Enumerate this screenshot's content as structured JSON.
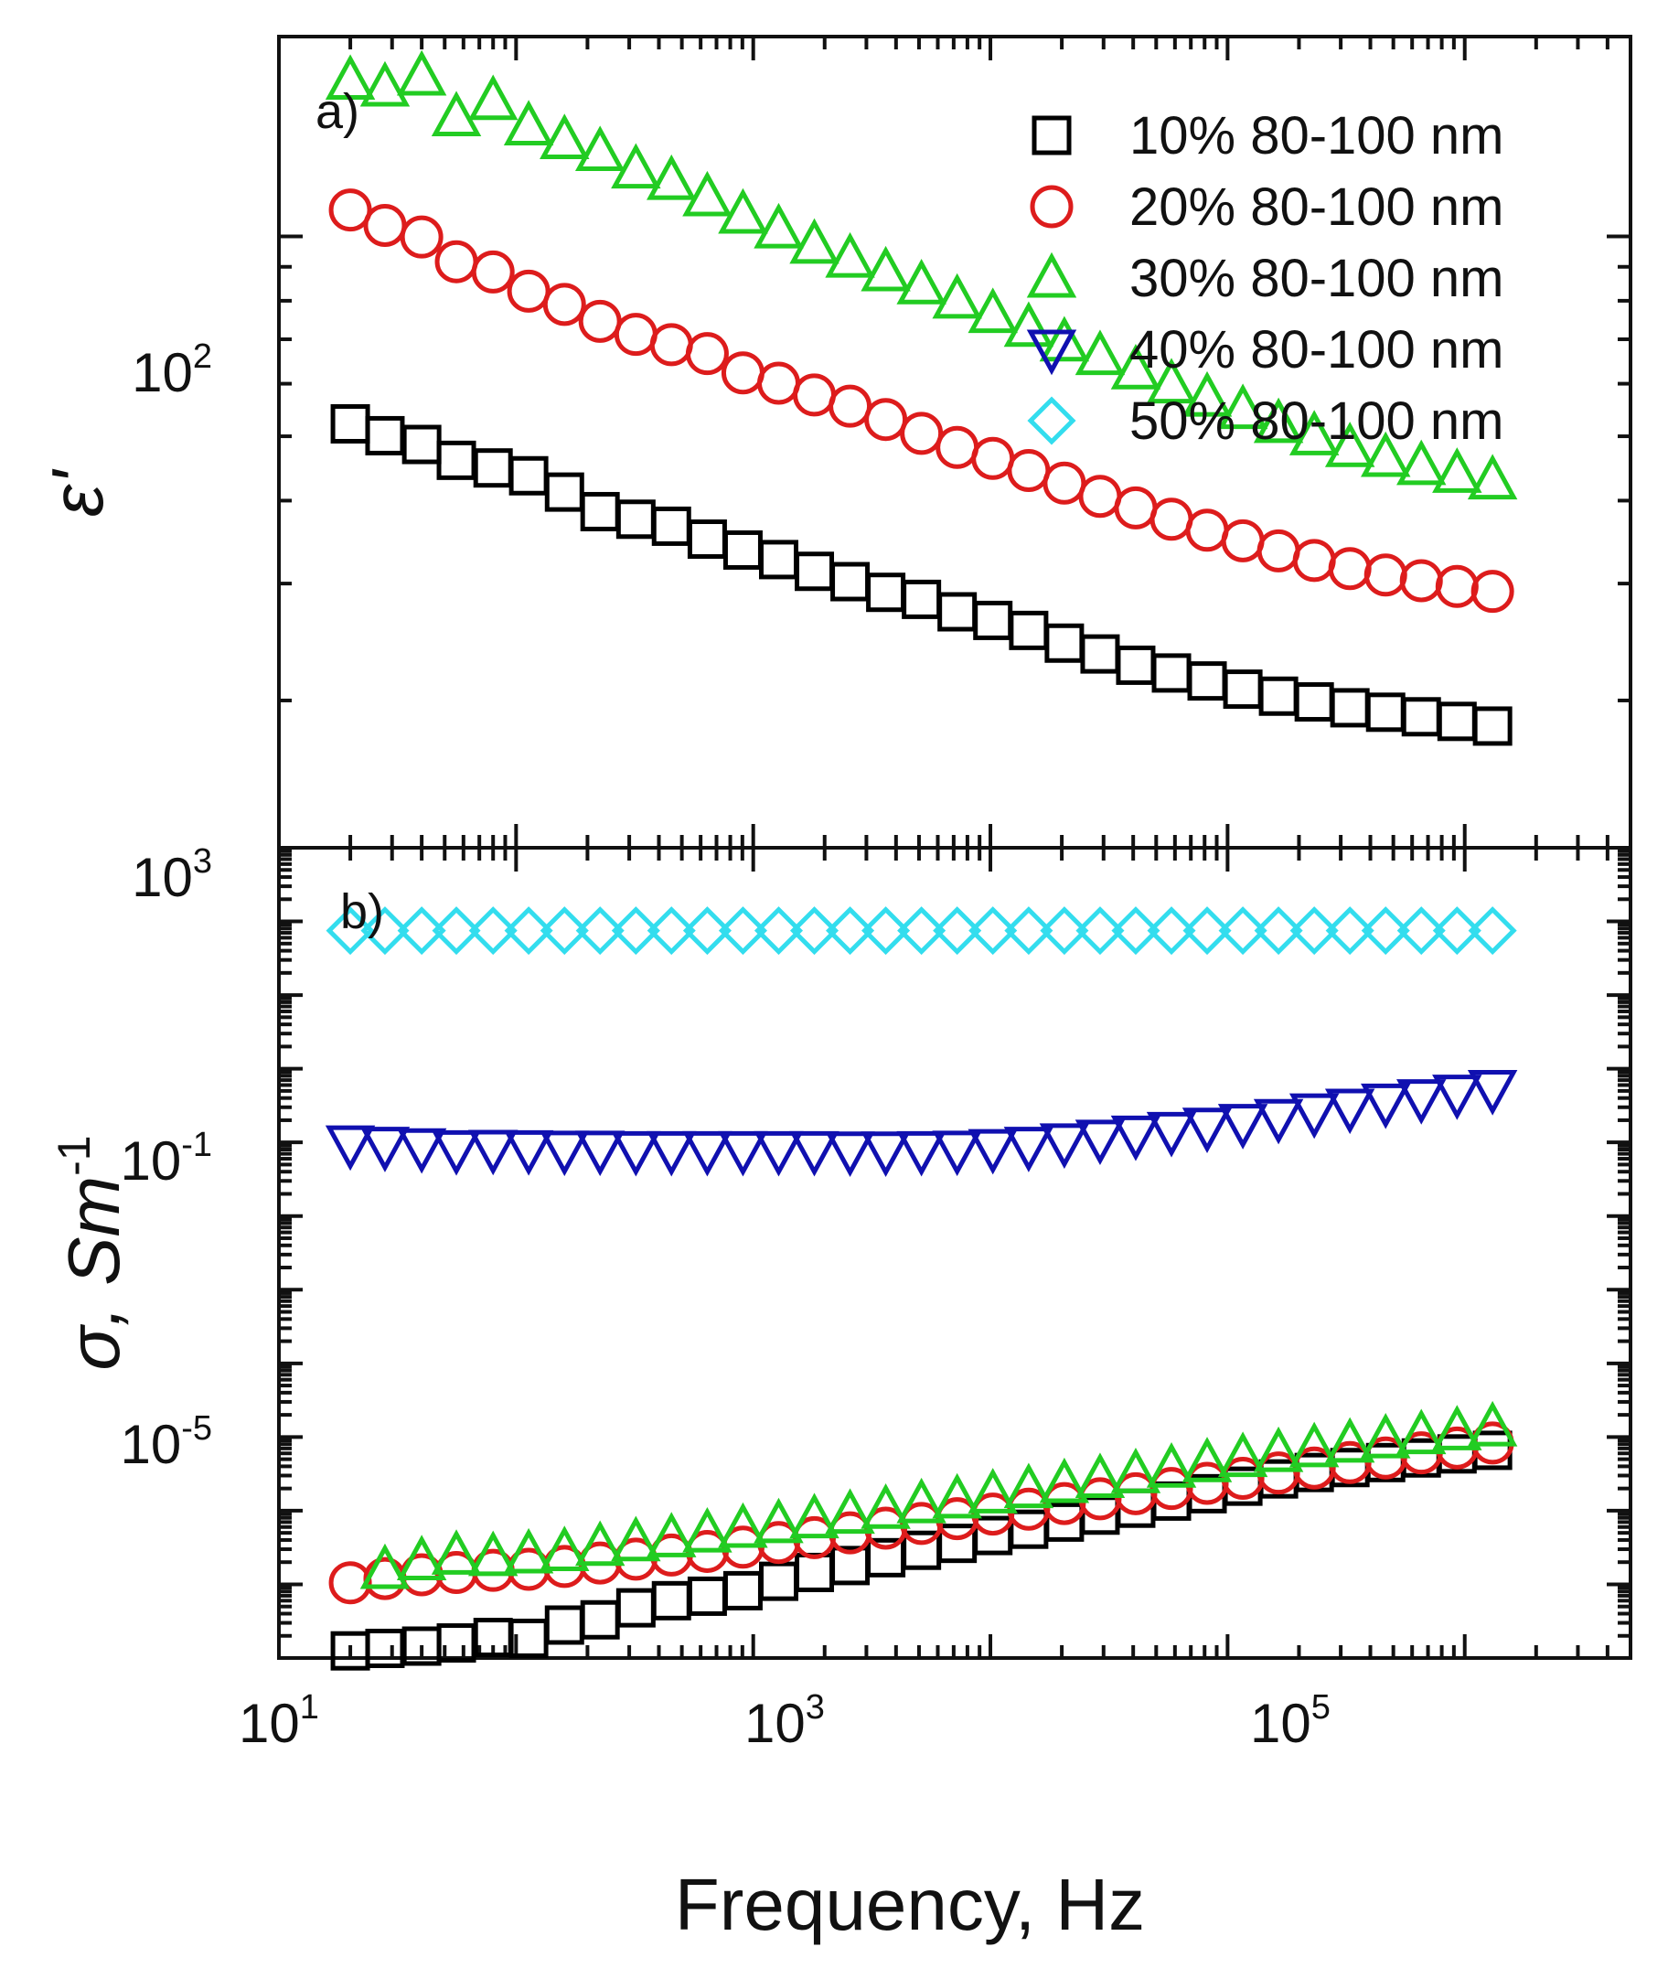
{
  "chart_data": [
    {
      "panel_label": "a)",
      "type": "scatter",
      "x_scale": "log",
      "y_scale": "log",
      "xlim": [
        10,
        5000000
      ],
      "ylim": [
        12,
        200
      ],
      "ylabel": "ε'",
      "y_ticks": [
        {
          "value": 100,
          "label": "10",
          "exp": "2"
        }
      ],
      "legend": {
        "placement": "top-right",
        "entries": [
          {
            "label": "10% 80-100 nm",
            "marker": "square",
            "color": "#000000"
          },
          {
            "label": "20% 80-100 nm",
            "marker": "circle",
            "color": "#dd1c1c"
          },
          {
            "label": "30% 80-100 nm",
            "marker": "triangle-up",
            "color": "#22cc22"
          },
          {
            "label": "40% 80-100 nm",
            "marker": "triangle-down",
            "color": "#1010b0"
          },
          {
            "label": "50% 80-100 nm",
            "marker": "diamond",
            "color": "#33ddee"
          }
        ]
      },
      "x": [
        20,
        28,
        40,
        56,
        80,
        113,
        160,
        226,
        320,
        452,
        640,
        905,
        1280,
        1810,
        2560,
        3620,
        5120,
        7240,
        10240,
        14500,
        20500,
        29000,
        41000,
        58000,
        82000,
        116000,
        164000,
        232000,
        328000,
        464000,
        656000,
        928000,
        1310000
      ],
      "series": [
        {
          "name": "10% 80-100 nm",
          "marker": "square",
          "color": "#000000",
          "values": [
            52.2,
            50.1,
            48.6,
            46.0,
            44.8,
            43.6,
            41.2,
            38.5,
            37.5,
            36.6,
            35.0,
            33.7,
            32.6,
            31.3,
            30.2,
            29.1,
            28.4,
            27.2,
            26.4,
            25.5,
            24.4,
            23.5,
            22.6,
            22.0,
            21.4,
            20.8,
            20.3,
            19.9,
            19.5,
            19.2,
            18.9,
            18.6,
            18.3
          ]
        },
        {
          "name": "20% 80-100 nm",
          "marker": "circle",
          "color": "#dd1c1c",
          "values": [
            109.6,
            103.9,
            99.8,
            91.6,
            88.4,
            82.7,
            79.0,
            74.5,
            71.2,
            68.7,
            66.6,
            62.3,
            60.1,
            57.7,
            55.5,
            53.0,
            50.5,
            48.1,
            46.3,
            44.4,
            42.5,
            40.6,
            39.0,
            37.5,
            36.1,
            34.8,
            33.6,
            32.5,
            31.6,
            30.9,
            30.3,
            29.7,
            29.2
          ]
        },
        {
          "name": "30% 80-100 nm",
          "marker": "triangle-up",
          "color": "#22cc22",
          "values": [
            172.0,
            168.0,
            174.5,
            151.5,
            160.3,
            146.8,
            140.0,
            134.3,
            126.4,
            121.5,
            114.8,
            108.1,
            102.7,
            97.4,
            92.8,
            88.5,
            84.6,
            80.5,
            76.6,
            73.0,
            69.4,
            66.2,
            63.0,
            60.0,
            57.3,
            54.9,
            52.3,
            50.1,
            48.1,
            46.5,
            45.2,
            44.0,
            43.0
          ]
        }
      ]
    },
    {
      "panel_label": "b)",
      "type": "scatter",
      "x_scale": "log",
      "y_scale": "log",
      "xlim": [
        10,
        5000000
      ],
      "ylim": [
        1e-08,
        1000
      ],
      "xlabel": "Frequency, Hz",
      "ylabel": "σ, Sm",
      "ylabel_exp": "-1",
      "x_ticks": [
        {
          "value": 10,
          "label": "10",
          "exp": "1"
        },
        {
          "value": 1000,
          "label": "10",
          "exp": "3"
        },
        {
          "value": 100000,
          "label": "10",
          "exp": "5"
        }
      ],
      "y_ticks": [
        {
          "value": 1000,
          "label": "10",
          "exp": "3"
        },
        {
          "value": 0.1,
          "label": "10",
          "exp": "-1"
        },
        {
          "value": 1e-05,
          "label": "10",
          "exp": "-5"
        }
      ],
      "x": [
        20,
        28,
        40,
        56,
        80,
        113,
        160,
        226,
        320,
        452,
        640,
        905,
        1280,
        1810,
        2560,
        3620,
        5120,
        7240,
        10240,
        14500,
        20500,
        29000,
        41000,
        58000,
        82000,
        116000,
        164000,
        232000,
        328000,
        464000,
        656000,
        928000,
        1310000
      ],
      "series": [
        {
          "name": "10% 80-100 nm",
          "marker": "square",
          "color": "#000000",
          "values": [
            1.25e-08,
            1.35e-08,
            1.45e-08,
            1.6e-08,
            1.9e-08,
            1.85e-08,
            2.8e-08,
            3.3e-08,
            4.8e-08,
            6e-08,
            6.9e-08,
            8.2e-08,
            1.1e-07,
            1.45e-07,
            1.8e-07,
            2.3e-07,
            2.9e-07,
            3.6e-07,
            4.6e-07,
            5.6e-07,
            7e-07,
            8.7e-07,
            1.08e-06,
            1.35e-06,
            1.7e-06,
            2.15e-06,
            2.7e-06,
            3.3e-06,
            3.85e-06,
            4.5e-06,
            5.2e-06,
            5.9e-06,
            6.6e-06
          ]
        },
        {
          "name": "20% 80-100 nm",
          "marker": "circle",
          "color": "#dd1c1c",
          "values": [
            1.05e-07,
            1.2e-07,
            1.35e-07,
            1.45e-07,
            1.55e-07,
            1.6e-07,
            1.75e-07,
            1.95e-07,
            2.2e-07,
            2.5e-07,
            2.8e-07,
            3.2e-07,
            3.7e-07,
            4.3e-07,
            5e-07,
            5.8e-07,
            6.7e-07,
            7.8e-07,
            9e-07,
            1.05e-06,
            1.25e-06,
            1.45e-06,
            1.7e-06,
            2e-06,
            2.35e-06,
            2.75e-06,
            3.25e-06,
            3.8e-06,
            4.5e-06,
            5.2e-06,
            6.1e-06,
            7.1e-06,
            8.3e-06
          ]
        },
        {
          "name": "30% 80-100 nm",
          "marker": "triangle-up",
          "color": "#22cc22",
          "values": [
            null,
            1.6e-07,
            2.1e-07,
            2.5e-07,
            2.4e-07,
            2.6e-07,
            2.8e-07,
            3.3e-07,
            3.8e-07,
            4.3e-07,
            5e-07,
            5.8e-07,
            6.7e-07,
            7.8e-07,
            9e-07,
            1.05e-06,
            1.25e-06,
            1.45e-06,
            1.7e-06,
            2e-06,
            2.35e-06,
            2.75e-06,
            3.2e-06,
            3.8e-06,
            4.5e-06,
            5.3e-06,
            6.2e-06,
            7.2e-06,
            8.3e-06,
            9.5e-06,
            1.08e-05,
            1.22e-05,
            1.38e-05
          ]
        },
        {
          "name": "40% 80-100 nm",
          "marker": "triangle-down",
          "color": "#1010b0",
          "values": [
            0.092,
            0.088,
            0.084,
            0.079,
            0.08,
            0.079,
            0.078,
            0.078,
            0.077,
            0.077,
            0.077,
            0.077,
            0.077,
            0.077,
            0.076,
            0.076,
            0.077,
            0.078,
            0.082,
            0.088,
            0.098,
            0.11,
            0.125,
            0.14,
            0.16,
            0.18,
            0.21,
            0.25,
            0.29,
            0.34,
            0.39,
            0.45,
            0.52
          ]
        },
        {
          "name": "50% 80-100 nm",
          "marker": "diamond",
          "color": "#33ddee",
          "values": [
            75,
            75,
            75,
            75,
            75,
            75,
            75,
            75,
            75,
            75,
            75,
            75,
            75,
            75,
            75,
            75,
            75,
            75,
            75,
            75,
            75,
            75,
            75,
            75,
            75,
            75,
            75,
            75,
            75,
            75,
            75,
            75,
            75
          ]
        }
      ]
    }
  ]
}
